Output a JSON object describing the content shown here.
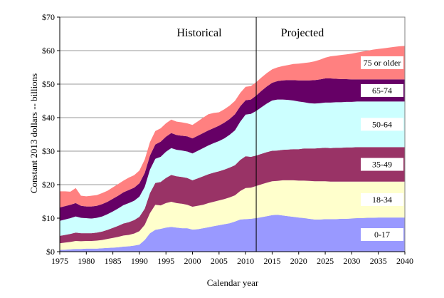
{
  "chart_data": {
    "type": "area",
    "stacked": true,
    "xlabel": "Calendar year",
    "ylabel": "Constant 2013 dollars -- billions",
    "xlim": [
      1975,
      2040
    ],
    "ylim": [
      0,
      70
    ],
    "x_ticks": [
      "1975",
      "1980",
      "1985",
      "1990",
      "1995",
      "2000",
      "2005",
      "2010",
      "2015",
      "2020",
      "2025",
      "2030",
      "2035",
      "2040"
    ],
    "y_ticks": [
      "$0",
      "$10",
      "$20",
      "$30",
      "$40",
      "$50",
      "$60",
      "$70"
    ],
    "grid": true,
    "divider_year": 2012,
    "period_labels": [
      "Historical",
      "Projected"
    ],
    "x": [
      1975,
      1976,
      1977,
      1978,
      1979,
      1980,
      1981,
      1982,
      1983,
      1984,
      1985,
      1986,
      1987,
      1988,
      1989,
      1990,
      1991,
      1992,
      1993,
      1994,
      1995,
      1996,
      1997,
      1998,
      1999,
      2000,
      2001,
      2002,
      2003,
      2004,
      2005,
      2006,
      2007,
      2008,
      2009,
      2010,
      2011,
      2012,
      2013,
      2014,
      2015,
      2016,
      2017,
      2018,
      2019,
      2020,
      2021,
      2022,
      2023,
      2024,
      2025,
      2026,
      2027,
      2028,
      2029,
      2030,
      2031,
      2032,
      2033,
      2034,
      2035,
      2036,
      2037,
      2038,
      2039,
      2040
    ],
    "series": [
      {
        "name": "0-17",
        "color": "#9999ff",
        "values": [
          0.5,
          0.6,
          0.7,
          0.8,
          0.8,
          0.9,
          0.9,
          0.9,
          1.0,
          1.1,
          1.2,
          1.3,
          1.5,
          1.6,
          1.8,
          2.1,
          3.5,
          5.5,
          6.5,
          6.8,
          7.2,
          7.4,
          7.2,
          7.0,
          7.0,
          6.6,
          6.7,
          7.0,
          7.3,
          7.6,
          7.9,
          8.2,
          8.5,
          9.0,
          9.6,
          9.7,
          9.8,
          10.0,
          10.3,
          10.6,
          10.9,
          11.0,
          10.8,
          10.6,
          10.4,
          10.2,
          10.0,
          9.8,
          9.6,
          9.6,
          9.7,
          9.7,
          9.7,
          9.8,
          9.8,
          9.9,
          10.0,
          10.0,
          10.1,
          10.1,
          10.2,
          10.2,
          10.2,
          10.2,
          10.2,
          10.2
        ]
      },
      {
        "name": "18-34",
        "color": "#ffffcc",
        "values": [
          2.0,
          2.1,
          2.2,
          2.4,
          2.3,
          2.3,
          2.3,
          2.4,
          2.5,
          2.7,
          2.9,
          3.1,
          3.3,
          3.4,
          3.6,
          4.0,
          4.5,
          6.0,
          7.5,
          7.0,
          7.3,
          7.5,
          7.3,
          7.3,
          7.0,
          6.8,
          7.0,
          7.0,
          7.2,
          7.3,
          7.4,
          7.5,
          7.7,
          7.8,
          8.5,
          9.3,
          9.3,
          9.6,
          9.8,
          10.0,
          10.1,
          10.1,
          10.5,
          10.7,
          10.9,
          11.0,
          11.2,
          11.3,
          11.4,
          11.4,
          11.3,
          11.2,
          11.2,
          11.1,
          11.1,
          11.0,
          10.9,
          10.9,
          10.8,
          10.8,
          10.7,
          10.7,
          10.7,
          10.7,
          10.7,
          10.7
        ]
      },
      {
        "name": "35-49",
        "color": "#993366",
        "values": [
          2.2,
          2.3,
          2.4,
          2.5,
          2.4,
          2.3,
          2.3,
          2.4,
          2.5,
          2.7,
          3.0,
          3.3,
          3.6,
          3.8,
          4.0,
          4.3,
          4.8,
          6.0,
          6.5,
          7.0,
          7.5,
          8.0,
          8.0,
          8.0,
          8.0,
          7.9,
          8.2,
          8.5,
          8.6,
          8.7,
          8.7,
          8.8,
          8.9,
          9.0,
          9.3,
          9.5,
          9.2,
          9.1,
          9.1,
          9.1,
          9.1,
          9.1,
          9.1,
          9.2,
          9.3,
          9.4,
          9.6,
          9.7,
          9.8,
          9.9,
          10.0,
          10.0,
          10.1,
          10.1,
          10.2,
          10.2,
          10.3,
          10.3,
          10.3,
          10.3,
          10.3,
          10.3,
          10.3,
          10.3,
          10.3,
          10.3
        ]
      },
      {
        "name": "50-64",
        "color": "#ccffff",
        "values": [
          4.5,
          4.6,
          4.7,
          4.8,
          4.6,
          4.5,
          4.4,
          4.4,
          4.5,
          4.7,
          4.9,
          5.2,
          5.5,
          5.7,
          5.8,
          6.0,
          6.5,
          7.0,
          7.2,
          7.5,
          7.8,
          8.0,
          7.9,
          7.9,
          7.9,
          8.0,
          8.2,
          8.4,
          8.6,
          8.8,
          9.0,
          9.3,
          9.8,
          10.4,
          11.4,
          12.4,
          12.8,
          13.3,
          13.9,
          14.5,
          15.0,
          15.2,
          15.0,
          14.8,
          14.5,
          14.2,
          13.8,
          13.5,
          13.4,
          13.4,
          13.5,
          13.6,
          13.6,
          13.6,
          13.6,
          13.6,
          13.6,
          13.6,
          13.6,
          13.6,
          13.6,
          13.6,
          13.6,
          13.6,
          13.6,
          13.6
        ]
      },
      {
        "name": "65-74",
        "color": "#660066",
        "values": [
          4.0,
          4.0,
          4.0,
          4.0,
          3.6,
          3.5,
          3.6,
          3.6,
          3.7,
          3.7,
          3.8,
          3.8,
          3.8,
          3.9,
          3.9,
          4.0,
          4.2,
          4.2,
          4.3,
          4.5,
          4.5,
          4.5,
          4.4,
          4.4,
          4.5,
          4.5,
          4.5,
          4.5,
          4.5,
          4.5,
          4.6,
          4.7,
          4.7,
          4.8,
          4.6,
          4.3,
          4.3,
          4.6,
          4.9,
          5.1,
          5.3,
          5.5,
          5.7,
          5.9,
          6.1,
          6.3,
          6.5,
          6.8,
          7.0,
          7.1,
          7.2,
          7.2,
          7.0,
          6.9,
          6.8,
          6.7,
          6.6,
          6.6,
          6.6,
          6.6,
          6.6,
          6.6,
          6.6,
          6.6,
          6.6,
          6.6
        ]
      },
      {
        "name": "75 or older",
        "color": "#ff8080",
        "values": [
          4.8,
          4.4,
          3.9,
          4.5,
          3.0,
          3.0,
          3.2,
          3.2,
          3.3,
          3.3,
          3.4,
          3.5,
          3.5,
          3.7,
          3.7,
          3.8,
          4.0,
          4.0,
          4.0,
          4.0,
          4.0,
          4.0,
          4.0,
          4.0,
          3.9,
          4.0,
          4.3,
          4.6,
          4.8,
          4.5,
          4.0,
          4.0,
          4.0,
          4.0,
          4.0,
          4.0,
          4.0,
          4.0,
          4.0,
          4.0,
          4.0,
          4.1,
          4.3,
          4.5,
          4.8,
          5.0,
          5.2,
          5.4,
          5.6,
          5.9,
          6.2,
          6.6,
          6.9,
          7.2,
          7.4,
          7.7,
          8.0,
          8.3,
          8.6,
          8.9,
          9.1,
          9.3,
          9.5,
          9.7,
          9.9,
          10.0
        ]
      }
    ]
  }
}
